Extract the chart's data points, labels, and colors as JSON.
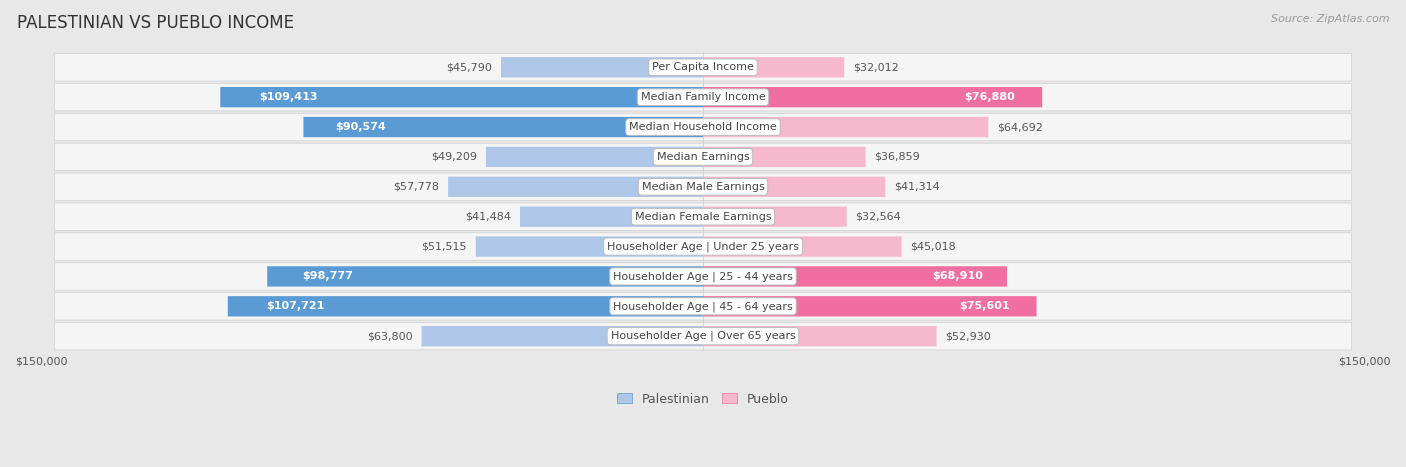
{
  "title": "PALESTINIAN VS PUEBLO INCOME",
  "source": "Source: ZipAtlas.com",
  "categories": [
    "Per Capita Income",
    "Median Family Income",
    "Median Household Income",
    "Median Earnings",
    "Median Male Earnings",
    "Median Female Earnings",
    "Householder Age | Under 25 years",
    "Householder Age | 25 - 44 years",
    "Householder Age | 45 - 64 years",
    "Householder Age | Over 65 years"
  ],
  "palestinian_values": [
    45790,
    109413,
    90574,
    49209,
    57778,
    41484,
    51515,
    98777,
    107721,
    63800
  ],
  "pueblo_values": [
    32012,
    76880,
    64692,
    36859,
    41314,
    32564,
    45018,
    68910,
    75601,
    52930
  ],
  "max_value": 150000,
  "palestinian_color_light": "#aec6e8",
  "palestinian_color_dark": "#5b9bd5",
  "pueblo_color_light": "#f5b8cc",
  "pueblo_color_dark": "#f06fa0",
  "bg_color": "#e8e8e8",
  "row_bg": "#f5f5f5",
  "row_border": "#d0d0d0",
  "center_line": "#cccccc",
  "title_fontsize": 12,
  "label_fontsize": 8,
  "value_fontsize": 8,
  "legend_fontsize": 9,
  "source_fontsize": 8,
  "dark_threshold": 65000
}
